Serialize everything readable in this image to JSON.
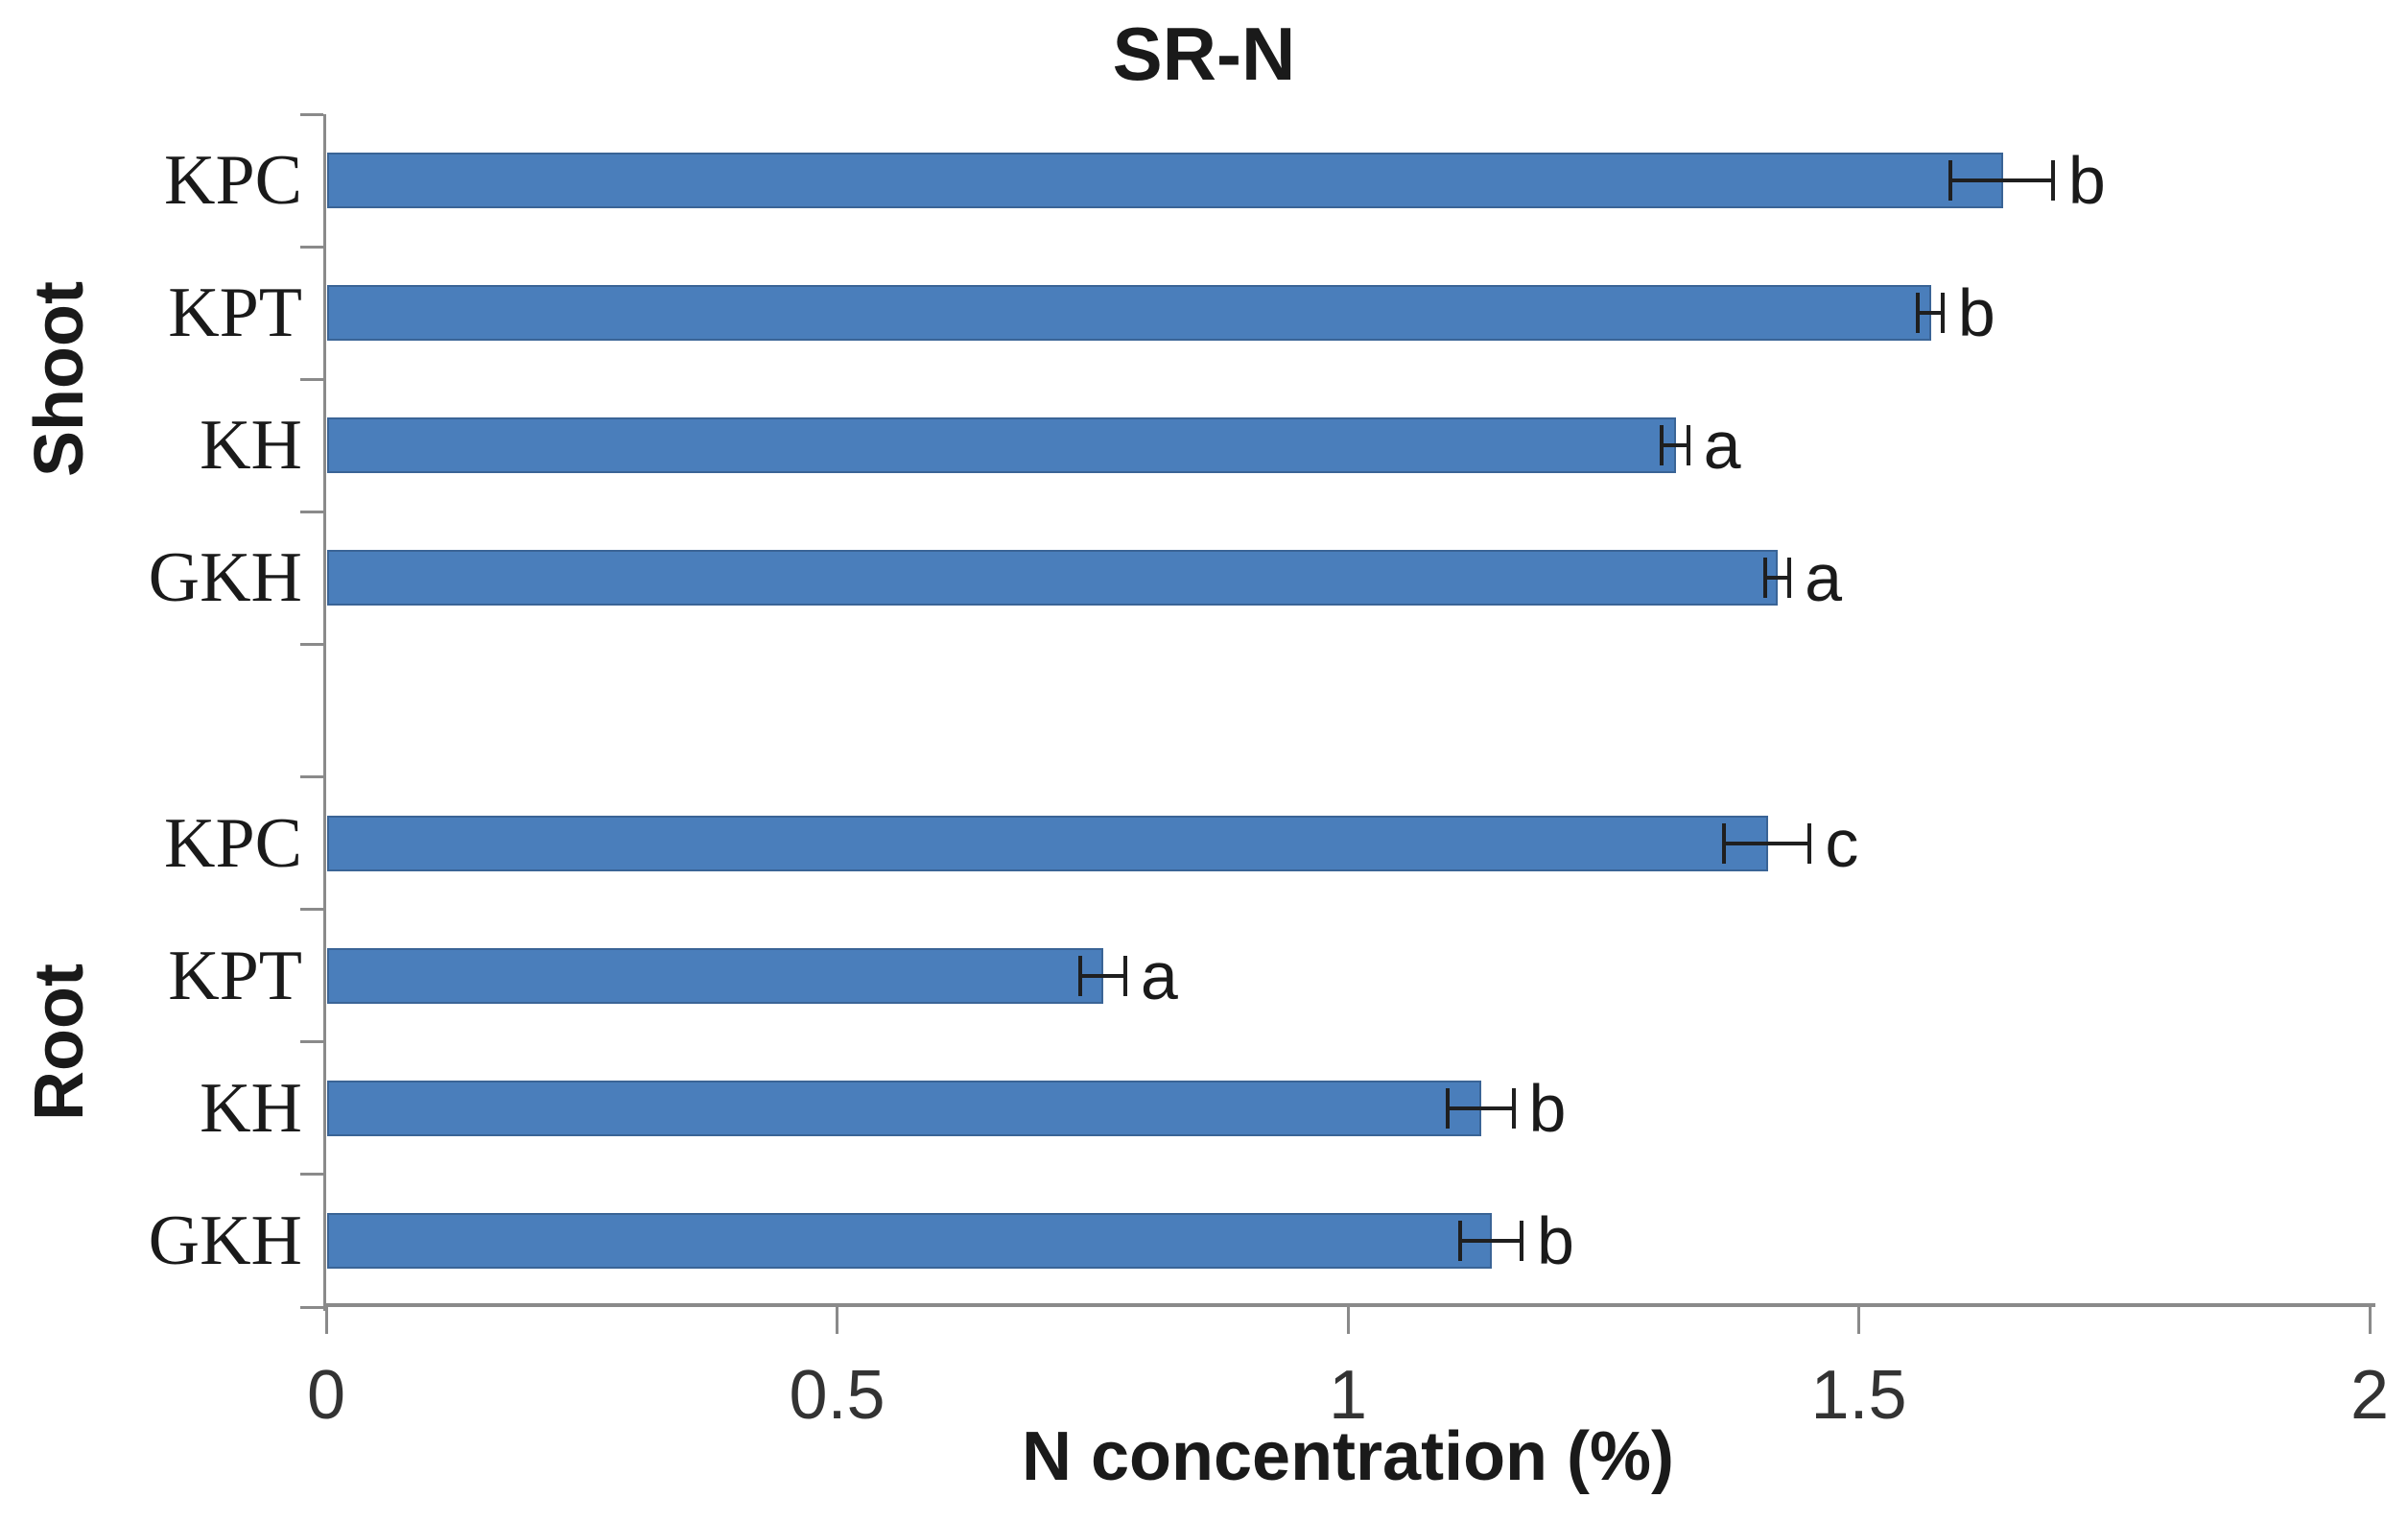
{
  "chart_data": {
    "type": "bar",
    "orientation": "horizontal",
    "title": "SR-N",
    "xlabel": "N concentration (%)",
    "xlim": [
      0,
      2
    ],
    "x_ticks": [
      "0",
      "0.5",
      "1",
      "1.5",
      "2"
    ],
    "x_tick_values": [
      0,
      0.5,
      1,
      1.5,
      2
    ],
    "grid": false,
    "legend": null,
    "bar_color": "#4A7EBB",
    "bar_border_color": "#3A6496",
    "axis_color": "#8A8A8A",
    "error_bar_color": "#1F1F1F",
    "background_color": "#FFFFFF",
    "gap_rows_between_groups": 1,
    "groups": [
      {
        "name": "Shoot",
        "bars": [
          {
            "category": "KPC",
            "value": 1.64,
            "error": 0.05,
            "letter": "b"
          },
          {
            "category": "KPT",
            "value": 1.57,
            "error": 0.012,
            "letter": "b"
          },
          {
            "category": "KH",
            "value": 1.32,
            "error": 0.013,
            "letter": "a"
          },
          {
            "category": "GKH",
            "value": 1.42,
            "error": 0.012,
            "letter": "a"
          }
        ]
      },
      {
        "name": "Root",
        "bars": [
          {
            "category": "KPC",
            "value": 1.41,
            "error": 0.042,
            "letter": "c"
          },
          {
            "category": "KPT",
            "value": 0.76,
            "error": 0.022,
            "letter": "a"
          },
          {
            "category": "KH",
            "value": 1.13,
            "error": 0.032,
            "letter": "b"
          },
          {
            "category": "GKH",
            "value": 1.14,
            "error": 0.03,
            "letter": "b"
          }
        ]
      }
    ]
  }
}
